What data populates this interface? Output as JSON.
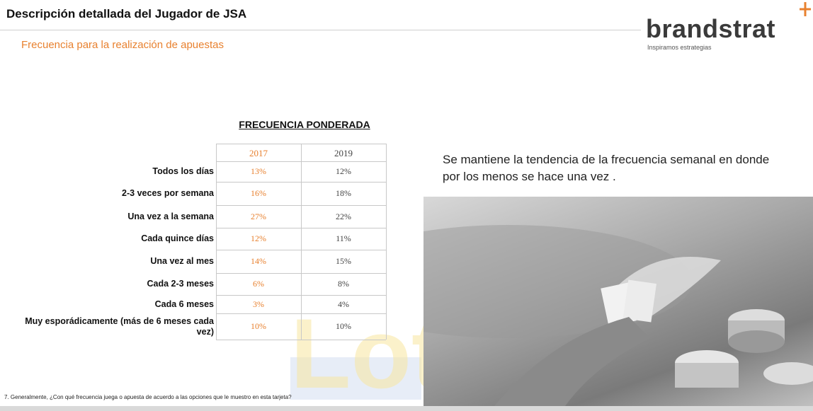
{
  "header": {
    "title": "Descripción detallada del Jugador de JSA",
    "subtitle": "Frecuencia para la realización de apuestas"
  },
  "logo": {
    "name": "brandstrat",
    "tagline": "Inspiramos estrategias"
  },
  "table": {
    "title": "FRECUENCIA PONDERADA",
    "columns": [
      "2017",
      "2019"
    ],
    "rows": [
      {
        "label": "Todos los días",
        "values": [
          "13%",
          "12%"
        ]
      },
      {
        "label": "2-3 veces por semana",
        "values": [
          "16%",
          "18%"
        ]
      },
      {
        "label": "Una vez a la semana",
        "values": [
          "27%",
          "22%"
        ]
      },
      {
        "label": "Cada quince días",
        "values": [
          "12%",
          "11%"
        ]
      },
      {
        "label": "Una vez al mes",
        "values": [
          "14%",
          "15%"
        ]
      },
      {
        "label": "Cada 2-3 meses",
        "values": [
          "6%",
          "8%"
        ]
      },
      {
        "label": "Cada 6 meses",
        "values": [
          "3%",
          "4%"
        ]
      },
      {
        "label": "Muy esporádicamente (más de 6 meses cada vez)",
        "values": [
          "10%",
          "10%"
        ]
      }
    ]
  },
  "note": "Se mantiene la tendencia de la frecuencia semanal en donde por los menos se hace una vez .",
  "watermark": "Lote",
  "footnote": "7. Generalmente, ¿Con qué frecuencia juega o apuesta de acuerdo a las opciones que le muestro en esta tarjeta?"
}
